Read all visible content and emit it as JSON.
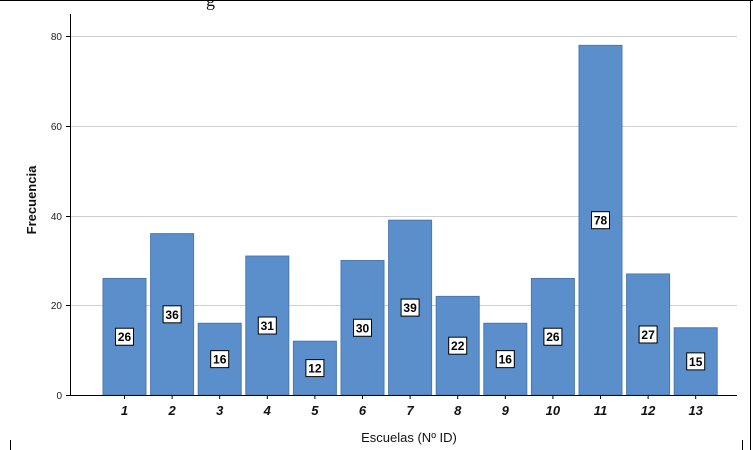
{
  "header": {
    "cut_text": "g"
  },
  "chart_data": {
    "type": "bar",
    "categories": [
      "1",
      "2",
      "3",
      "4",
      "5",
      "6",
      "7",
      "8",
      "9",
      "10",
      "11",
      "12",
      "13"
    ],
    "values": [
      26,
      36,
      16,
      31,
      12,
      30,
      39,
      22,
      16,
      26,
      78,
      27,
      15
    ],
    "xlabel": "Escuelas (Nº ID)",
    "ylabel": "Frecuencia",
    "ylim": [
      0,
      85
    ],
    "yticks": [
      0,
      20,
      40,
      60,
      80
    ],
    "grid": true,
    "bar_color": "#5b8fcc",
    "bar_edge_color": "#4a78b0"
  }
}
